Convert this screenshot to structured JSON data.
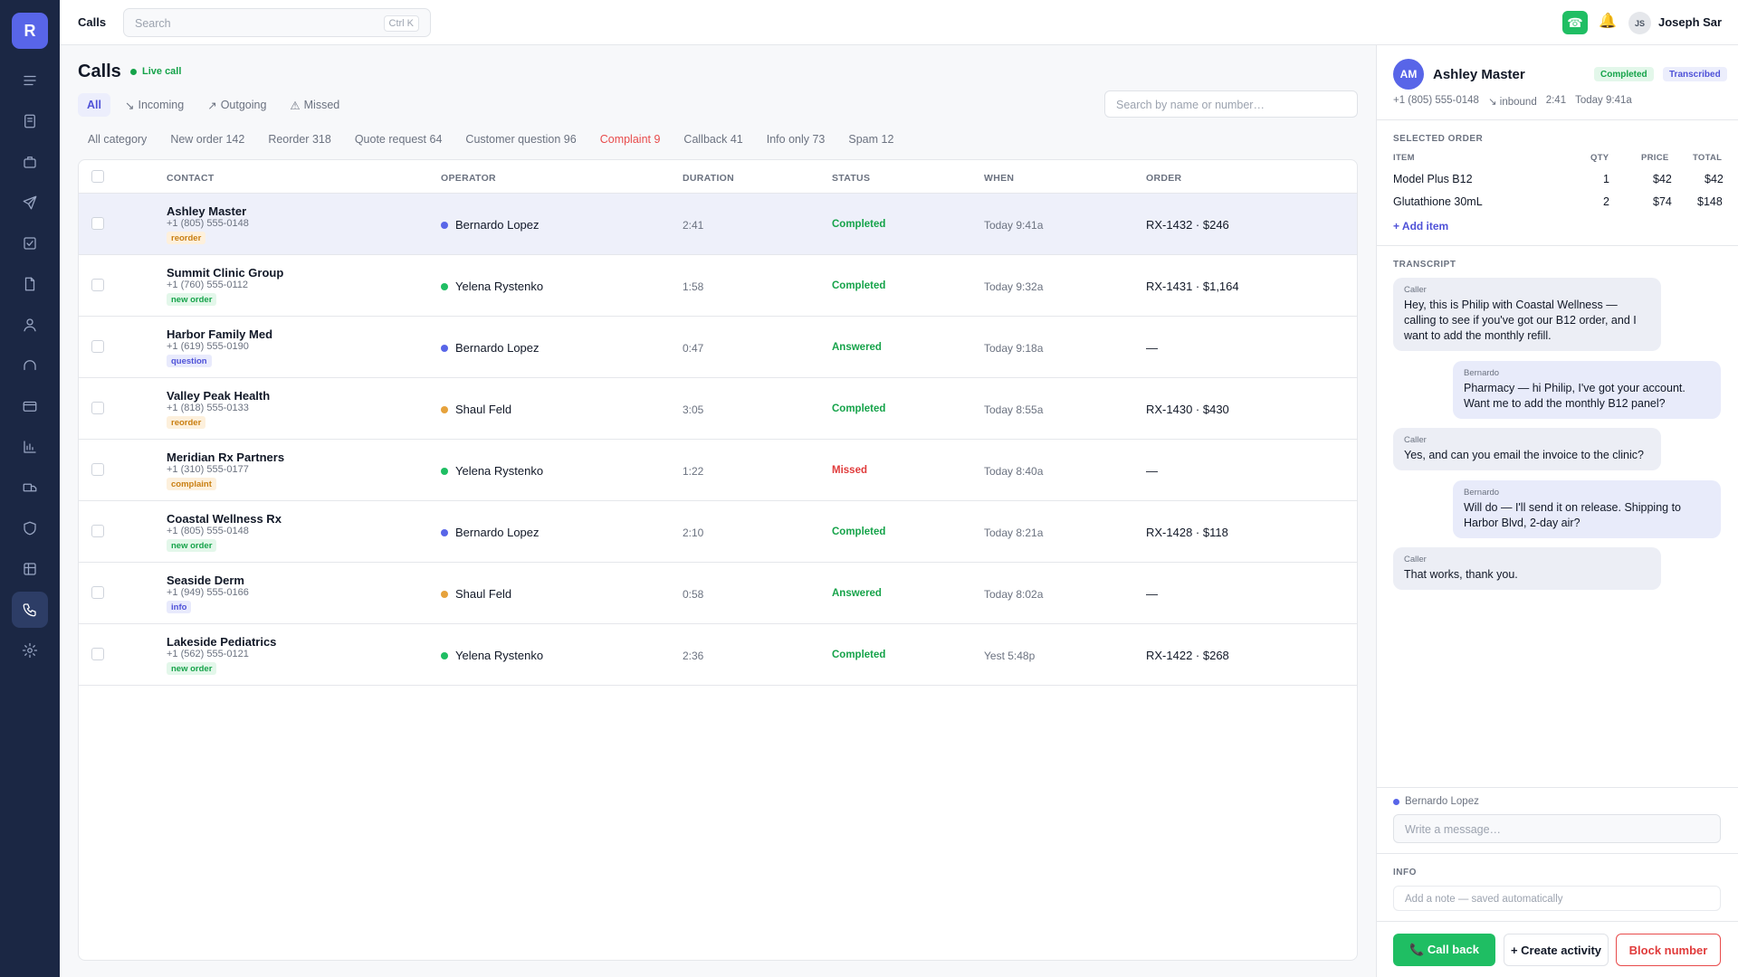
{
  "app": {
    "logo_letter": "R",
    "page": "Calls"
  },
  "topbar": {
    "search_placeholder": "Search",
    "shortcut": "Ctrl K",
    "user_initials": "JS",
    "user_name": "Joseph Sar",
    "phone_icon": "☎",
    "bell_icon": "🔔"
  },
  "sidebar": {
    "icons": [
      "menu-icon",
      "document-icon",
      "briefcase-icon",
      "send-icon",
      "checkbox-icon",
      "file-icon",
      "user-icon",
      "headset-icon",
      "card-icon",
      "chart-icon",
      "truck-icon",
      "shield-icon",
      "table-icon",
      "phone-icon",
      "settings-icon"
    ],
    "active": "phone-icon"
  },
  "main": {
    "title": "Calls",
    "live_label": "Live call",
    "tabs": [
      {
        "label": "All",
        "icon": ""
      },
      {
        "label": "Incoming",
        "icon": "↘"
      },
      {
        "label": "Outgoing",
        "icon": "↗"
      },
      {
        "label": "Missed",
        "icon": "⚠"
      }
    ],
    "search_placeholder": "Search by name or number…",
    "categories": [
      "All category",
      "New order 142",
      "Reorder 318",
      "Quote request 64",
      "Customer question 96",
      "Complaint 9",
      "Callback 41",
      "Info only 73",
      "Spam 12"
    ],
    "columns": [
      "CONTACT",
      "OPERATOR",
      "DURATION",
      "STATUS",
      "WHEN",
      "ORDER"
    ],
    "rows": [
      {
        "name": "Ashley Master",
        "phone": "+1 (805) 555-0148",
        "tag": "reorder",
        "operator": "Bernardo Lopez",
        "op_color": "#5865e8",
        "duration": "2:41",
        "status": "Completed",
        "when": "Today 9:41a",
        "order": "RX-1432 · $246"
      },
      {
        "name": "Summit Clinic Group",
        "phone": "+1 (760) 555-0112",
        "tag": "new order",
        "operator": "Yelena Rystenko",
        "op_color": "#1fbe63",
        "duration": "1:58",
        "status": "Completed",
        "when": "Today 9:32a",
        "order": "RX-1431 · $1,164"
      },
      {
        "name": "Harbor Family Med",
        "phone": "+1 (619) 555-0190",
        "tag": "question",
        "operator": "Bernardo Lopez",
        "op_color": "#5865e8",
        "duration": "0:47",
        "status": "Answered",
        "when": "Today 9:18a",
        "order": "—"
      },
      {
        "name": "Valley Peak Health",
        "phone": "+1 (818) 555-0133",
        "tag": "reorder",
        "operator": "Shaul Feld",
        "op_color": "#e6a23c",
        "duration": "3:05",
        "status": "Completed",
        "when": "Today 8:55a",
        "order": "RX-1430 · $430"
      },
      {
        "name": "Meridian Rx Partners",
        "phone": "+1 (310) 555-0177",
        "tag": "complaint",
        "operator": "Yelena Rystenko",
        "op_color": "#1fbe63",
        "duration": "1:22",
        "status": "Missed",
        "when": "Today 8:40a",
        "order": "—"
      },
      {
        "name": "Coastal Wellness Rx",
        "phone": "+1 (805) 555-0148",
        "tag": "new order",
        "operator": "Bernardo Lopez",
        "op_color": "#5865e8",
        "duration": "2:10",
        "status": "Completed",
        "when": "Today 8:21a",
        "order": "RX-1428 · $118"
      },
      {
        "name": "Seaside Derm",
        "phone": "+1 (949) 555-0166",
        "tag": "info",
        "operator": "Shaul Feld",
        "op_color": "#e6a23c",
        "duration": "0:58",
        "status": "Answered",
        "when": "Today 8:02a",
        "order": "—"
      },
      {
        "name": "Lakeside Pediatrics",
        "phone": "+1 (562) 555-0121",
        "tag": "new order",
        "operator": "Yelena Rystenko",
        "op_color": "#1fbe63",
        "duration": "2:36",
        "status": "Completed",
        "when": "Yest 5:48p",
        "order": "RX-1422 · $268"
      }
    ]
  },
  "detail": {
    "initials": "AM",
    "name": "Ashley Master",
    "status_pill": "Completed",
    "transcribed_pill": "Transcribed",
    "phone": "+1 (805) 555-0148",
    "direction": "↘ inbound",
    "duration": "2:41",
    "when": "Today 9:41a",
    "order_section": "SELECTED ORDER",
    "order_columns": [
      "ITEM",
      "QTY",
      "PRICE",
      "TOTAL"
    ],
    "order_items": [
      {
        "item": "Model Plus B12",
        "qty": "1",
        "price": "$42",
        "total": "$42"
      },
      {
        "item": "Glutathione 30mL",
        "qty": "2",
        "price": "$74",
        "total": "$148"
      }
    ],
    "add_item": "+ Add item",
    "transcript_section": "TRANSCRIPT",
    "transcript": [
      {
        "who": "Caller",
        "side": "left",
        "text": "Hey, this is Philip with Coastal Wellness — calling to see if you've got our B12 order, and I want to add the monthly refill."
      },
      {
        "who": "Bernardo",
        "side": "right",
        "text": "Pharmacy — hi Philip, I've got your account. Want me to add the monthly B12 panel?"
      },
      {
        "who": "Caller",
        "side": "left",
        "text": "Yes, and can you email the invoice to the clinic?"
      },
      {
        "who": "Bernardo",
        "side": "right",
        "text": "Will do — I'll send it on release. Shipping to Harbor Blvd, 2-day air?"
      },
      {
        "who": "Caller",
        "side": "left",
        "text": "That works, thank you."
      }
    ],
    "operator": "Bernardo Lopez",
    "message_placeholder": "Write a message…",
    "info_section": "INFO",
    "note_placeholder": "Add a note — saved automatically",
    "buttons": {
      "call_back": "📞 Call back",
      "create_activity": "+ Create activity",
      "block": "Block number"
    }
  }
}
